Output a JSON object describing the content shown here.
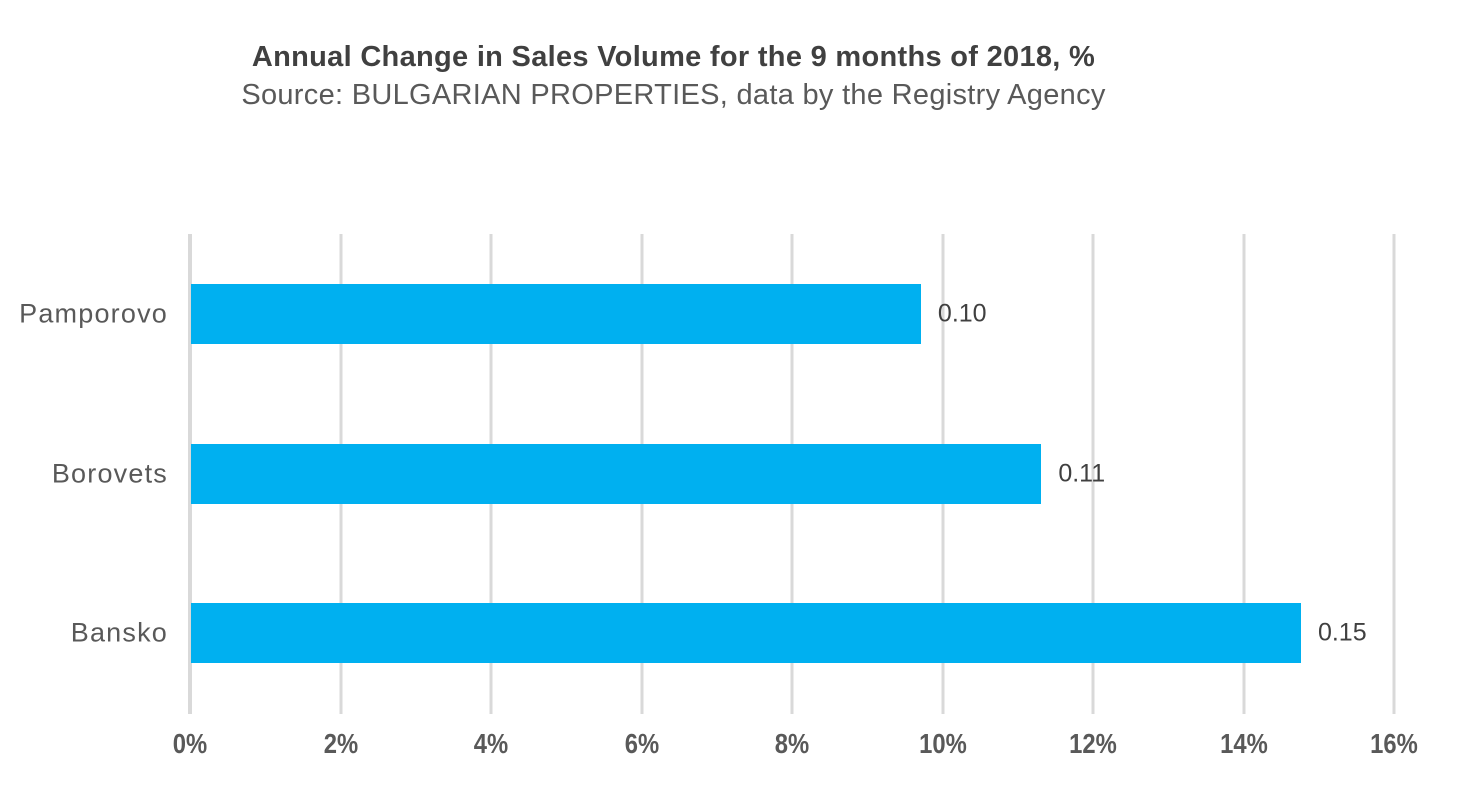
{
  "chart": {
    "colors": {
      "bar": "#00B0F0",
      "gridline": "#D9D9D9",
      "title_text": "#404040",
      "subtitle_text": "#595959",
      "category_text": "#595959",
      "tick_text": "#595959",
      "value_label_text": "#404040"
    }
  },
  "chart_data": {
    "type": "bar",
    "orientation": "horizontal",
    "title": "Annual Change in Sales Volume for the 9 months of 2018, %",
    "subtitle": "Source: BULGARIAN PROPERTIES, data by the Registry Agency",
    "categories": [
      "Pamporovo",
      "Borovets",
      "Bansko"
    ],
    "values_pct": [
      9.7,
      11.3,
      14.75
    ],
    "data_labels": [
      "0.10",
      "0.11",
      "0.15"
    ],
    "x_axis": {
      "min": 0,
      "max": 16,
      "step": 2,
      "ticks": [
        "0%",
        "2%",
        "4%",
        "6%",
        "8%",
        "10%",
        "12%",
        "14%",
        "16%"
      ]
    },
    "grid": "vertical",
    "legend": "none"
  }
}
